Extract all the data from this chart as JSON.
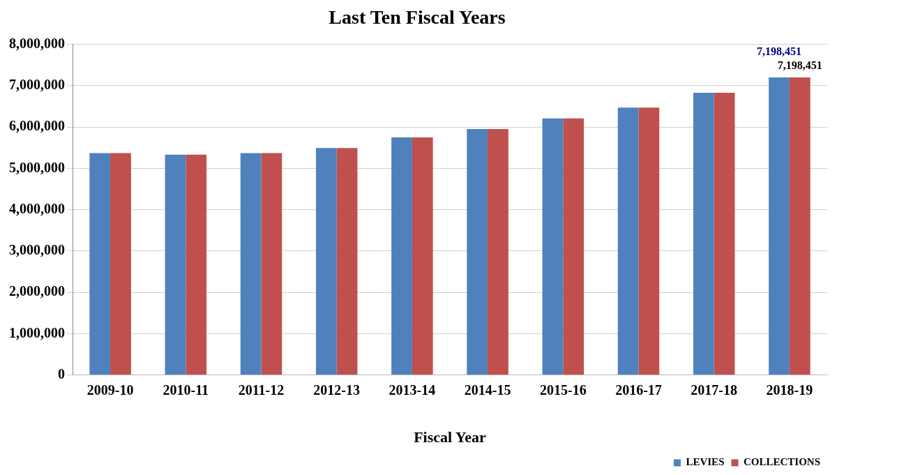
{
  "chart_data": {
    "type": "bar",
    "title": "Last Ten Fiscal Years",
    "xlabel": "Fiscal Year",
    "categories": [
      "2009-10",
      "2010-11",
      "2011-12",
      "2012-13",
      "2013-14",
      "2014-15",
      "2015-16",
      "2016-17",
      "2017-18",
      "2018-19"
    ],
    "series": [
      {
        "name": "LEVIES",
        "color": "#4f81bd",
        "values": [
          5370000,
          5330000,
          5370000,
          5490000,
          5750000,
          5950000,
          6210000,
          6470000,
          6830000,
          7198451
        ],
        "value_labels": [
          null,
          null,
          null,
          null,
          null,
          null,
          null,
          null,
          null,
          "7,198,451"
        ]
      },
      {
        "name": "COLLECTIONS",
        "color": "#c0504d",
        "values": [
          5370000,
          5330000,
          5370000,
          5490000,
          5750000,
          5950000,
          6210000,
          6470000,
          6830000,
          7198451
        ],
        "value_labels": [
          null,
          null,
          null,
          null,
          null,
          null,
          null,
          null,
          null,
          "7,198,451"
        ]
      }
    ],
    "ylim": [
      0,
      8000000
    ],
    "yticks": [
      {
        "value": 0,
        "label": "0"
      },
      {
        "value": 1000000,
        "label": "1,000,000"
      },
      {
        "value": 2000000,
        "label": "2,000,000"
      },
      {
        "value": 3000000,
        "label": "3,000,000"
      },
      {
        "value": 4000000,
        "label": "4,000,000"
      },
      {
        "value": 5000000,
        "label": "5,000,000"
      },
      {
        "value": 6000000,
        "label": "6,000,000"
      },
      {
        "value": 7000000,
        "label": "7,000,000"
      },
      {
        "value": 8000000,
        "label": "8,000,000"
      }
    ],
    "grid": "y",
    "legend": "bottom right"
  }
}
